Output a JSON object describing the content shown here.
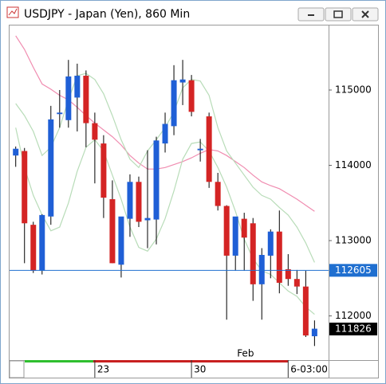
{
  "window": {
    "title": "USDJPY - Japan (Yen), 860 Min"
  },
  "chart_data": {
    "type": "candlestick",
    "open": [
      114130,
      114190,
      113210,
      112600,
      113320,
      114680,
      114600,
      114900,
      115190,
      114560,
      114290,
      113550,
      112680,
      113290,
      113780,
      113270,
      113280,
      114290,
      114520,
      115100,
      115130,
      114200,
      114650,
      113780,
      113460,
      112800,
      113290,
      113230,
      112420,
      112800,
      113120,
      112620,
      112490,
      112390,
      111730
    ],
    "high": [
      114250,
      114230,
      113250,
      113350,
      114790,
      115000,
      115400,
      115350,
      115260,
      114700,
      114400,
      113800,
      113300,
      113880,
      113850,
      114200,
      114380,
      114700,
      115330,
      115400,
      115200,
      114350,
      114700,
      113900,
      113470,
      113300,
      113370,
      113300,
      112900,
      113150,
      113400,
      112820,
      112610,
      112600,
      111940
    ],
    "low": [
      113980,
      112700,
      112570,
      112550,
      113210,
      114500,
      114500,
      114450,
      114240,
      113760,
      113300,
      112700,
      112510,
      113050,
      113180,
      112900,
      112950,
      114170,
      114400,
      114800,
      114650,
      114050,
      113700,
      113400,
      111950,
      112600,
      112600,
      112200,
      111950,
      112500,
      112300,
      112400,
      112290,
      111720,
      111600
    ],
    "close": [
      114220,
      113230,
      112600,
      113340,
      114610,
      114700,
      115180,
      115190,
      114560,
      114340,
      113570,
      112700,
      113320,
      113780,
      113250,
      113300,
      114330,
      114550,
      115130,
      115140,
      114710,
      114220,
      113780,
      113460,
      112800,
      113320,
      113040,
      112420,
      112810,
      113120,
      112440,
      112490,
      112390,
      111740,
      111830
    ],
    "up_color": "#1f5fd6",
    "down_color": "#d42424",
    "lines": [
      {
        "color": "#f08cb0",
        "values": [
          115720,
          115540,
          115300,
          115080,
          115010,
          114930,
          114870,
          114770,
          114660,
          114560,
          114470,
          114380,
          114270,
          114130,
          114030,
          113950,
          113950,
          113970,
          114010,
          114050,
          114100,
          114160,
          114210,
          114190,
          114130,
          114050,
          113970,
          113870,
          113780,
          113730,
          113690,
          113620,
          113550,
          113470,
          113390
        ]
      },
      {
        "color": "#b8dcb8",
        "values": [
          114820,
          114660,
          114450,
          114130,
          114240,
          114500,
          114870,
          115190,
          115220,
          115140,
          114950,
          114660,
          114340,
          114080,
          113970,
          114190,
          114340,
          114500,
          114710,
          115030,
          115140,
          115120,
          114930,
          114500,
          114190,
          114030,
          113870,
          113710,
          113600,
          113550,
          113440,
          113340,
          113180,
          112970,
          112710
        ]
      },
      {
        "color": "#b8dcb8",
        "values": [
          114500,
          113970,
          113600,
          113340,
          113130,
          113180,
          113500,
          113920,
          114240,
          114340,
          114190,
          113870,
          113550,
          113180,
          112910,
          112860,
          113020,
          113290,
          113660,
          114080,
          114290,
          114310,
          114190,
          113970,
          113710,
          113390,
          113020,
          112760,
          112600,
          112550,
          112440,
          112330,
          112260,
          112120,
          112020
        ]
      }
    ],
    "ylim": [
      111413,
      115857
    ],
    "yticks": [
      112000,
      113000,
      114000,
      115000
    ],
    "xlim": [
      -0.7,
      35.6
    ],
    "xticks": [
      {
        "value": 9,
        "label": "23"
      },
      {
        "value": 20,
        "label": "30"
      },
      {
        "value": 31,
        "label": "6-03:00"
      }
    ],
    "month_label": {
      "value": 25,
      "label": "Feb"
    },
    "hline": 112605,
    "hline_color": "#1f6fd0",
    "last_price": 111826
  }
}
